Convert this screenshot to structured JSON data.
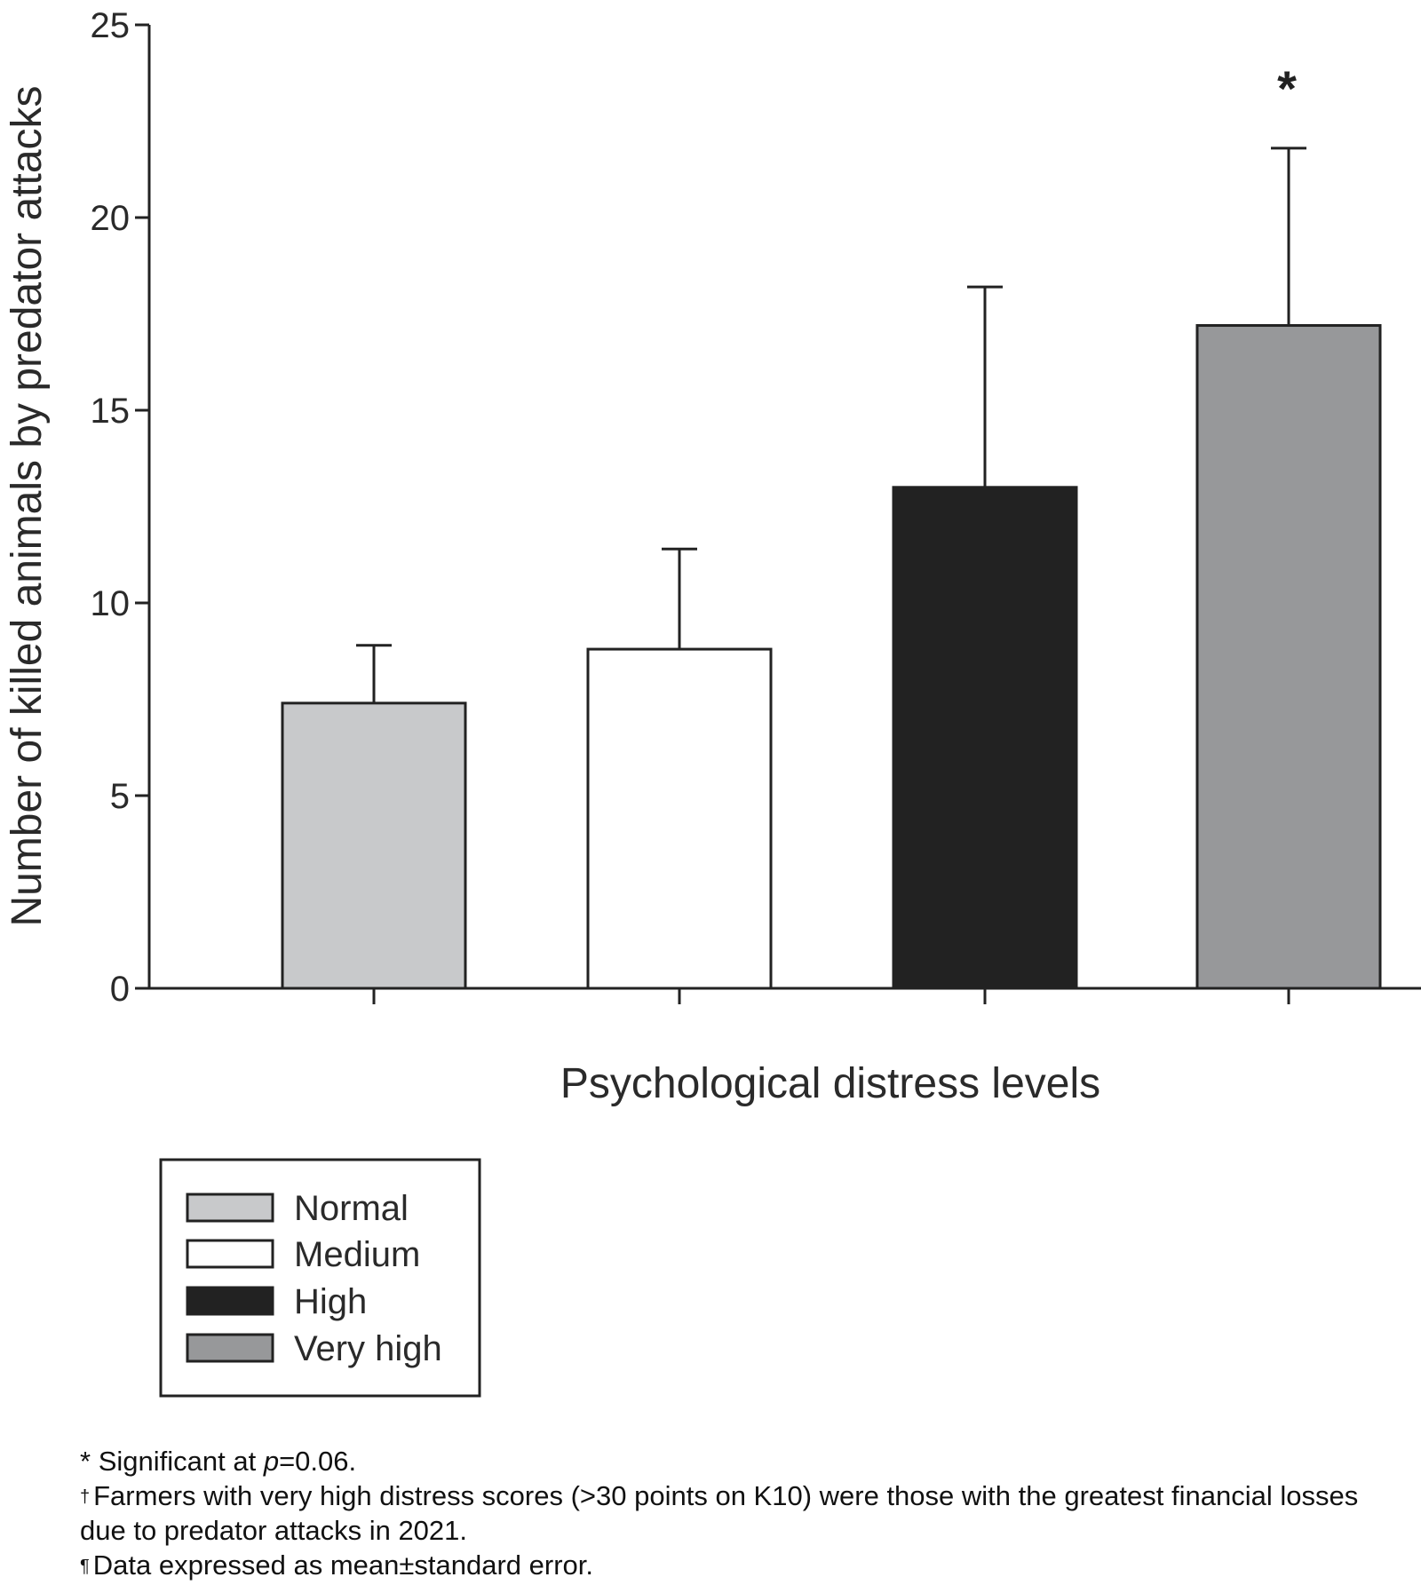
{
  "chart_data": {
    "type": "bar",
    "title": "",
    "xlabel": "Psychological distress levels",
    "ylabel": "Number of killed animals by predator attacks",
    "ylim": [
      0,
      25
    ],
    "yticks": [
      "0",
      "5",
      "10",
      "15",
      "20",
      "25"
    ],
    "ytick_values": [
      0,
      5,
      10,
      15,
      20,
      25
    ],
    "categories": [
      "Normal",
      "Medium",
      "High",
      "Very high"
    ],
    "values": [
      7.4,
      8.8,
      13.0,
      17.2
    ],
    "errors": [
      1.5,
      2.6,
      5.2,
      4.6
    ],
    "colors": [
      "#c8c9cb",
      "#ffffff",
      "#222222",
      "#97989a"
    ],
    "annotations": [
      {
        "category": "Very high",
        "text": "*"
      }
    ],
    "legend": {
      "position": "bottom-left",
      "entries": [
        "Normal",
        "Medium",
        "High",
        "Very high"
      ]
    },
    "grid": false
  },
  "footnotes": {
    "sig_symbol": "*",
    "sig_text": "Significant at ",
    "sig_p": "p",
    "sig_value": "=0.06.",
    "dagger_symbol": "†",
    "dagger_text": "Farmers with very high distress scores (>30 points on K10) were those with the greatest financial losses due to predator attacks in 2021.",
    "pilcrow_symbol": "¶",
    "pilcrow_text": "Data expressed as mean±standard error."
  }
}
